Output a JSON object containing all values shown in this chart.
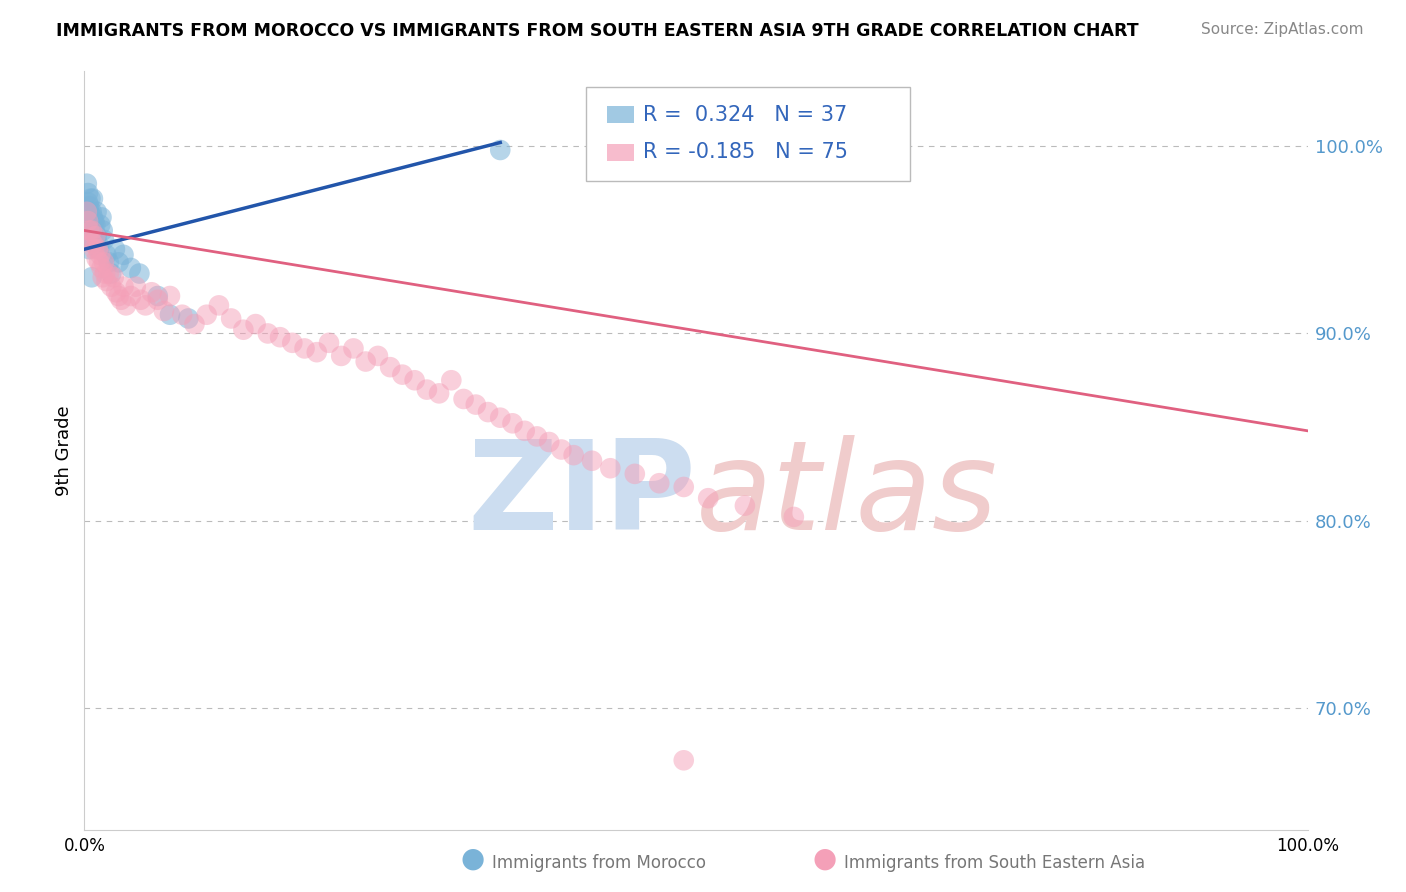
{
  "title": "IMMIGRANTS FROM MOROCCO VS IMMIGRANTS FROM SOUTH EASTERN ASIA 9TH GRADE CORRELATION CHART",
  "source": "Source: ZipAtlas.com",
  "ylabel": "9th Grade",
  "ytick_labels": [
    "100.0%",
    "90.0%",
    "80.0%",
    "70.0%"
  ],
  "ytick_values": [
    1.0,
    0.9,
    0.8,
    0.7
  ],
  "xlim": [
    0.0,
    1.0
  ],
  "ylim": [
    0.635,
    1.04
  ],
  "blue_color": "#7ab3d8",
  "pink_color": "#f4a0b8",
  "blue_line_color": "#2255aa",
  "pink_line_color": "#e06080",
  "background_color": "#ffffff",
  "grid_color": "#bbbbbb",
  "watermark_zip_color": "#ccddf0",
  "watermark_atlas_color": "#f0cccc",
  "blue_scatter_x": [
    0.002,
    0.003,
    0.003,
    0.004,
    0.004,
    0.005,
    0.005,
    0.006,
    0.006,
    0.007,
    0.007,
    0.008,
    0.008,
    0.009,
    0.01,
    0.01,
    0.011,
    0.012,
    0.013,
    0.014,
    0.015,
    0.016,
    0.018,
    0.02,
    0.022,
    0.025,
    0.028,
    0.032,
    0.038,
    0.045,
    0.06,
    0.07,
    0.085,
    0.34,
    0.003,
    0.004,
    0.006
  ],
  "blue_scatter_y": [
    0.98,
    0.975,
    0.97,
    0.968,
    0.965,
    0.972,
    0.96,
    0.965,
    0.958,
    0.972,
    0.962,
    0.96,
    0.955,
    0.958,
    0.965,
    0.952,
    0.948,
    0.945,
    0.958,
    0.962,
    0.955,
    0.95,
    0.942,
    0.938,
    0.932,
    0.945,
    0.938,
    0.942,
    0.935,
    0.932,
    0.92,
    0.91,
    0.908,
    0.998,
    0.95,
    0.945,
    0.93
  ],
  "pink_scatter_x": [
    0.002,
    0.003,
    0.004,
    0.005,
    0.006,
    0.007,
    0.008,
    0.009,
    0.01,
    0.011,
    0.012,
    0.013,
    0.014,
    0.015,
    0.016,
    0.017,
    0.018,
    0.02,
    0.022,
    0.024,
    0.026,
    0.028,
    0.03,
    0.032,
    0.034,
    0.038,
    0.042,
    0.046,
    0.05,
    0.055,
    0.06,
    0.065,
    0.07,
    0.08,
    0.09,
    0.1,
    0.11,
    0.12,
    0.13,
    0.14,
    0.15,
    0.16,
    0.17,
    0.18,
    0.19,
    0.2,
    0.21,
    0.22,
    0.23,
    0.24,
    0.25,
    0.26,
    0.27,
    0.28,
    0.29,
    0.3,
    0.31,
    0.32,
    0.33,
    0.34,
    0.35,
    0.36,
    0.37,
    0.38,
    0.39,
    0.4,
    0.415,
    0.43,
    0.45,
    0.47,
    0.49,
    0.51,
    0.54,
    0.58,
    0.49
  ],
  "pink_scatter_y": [
    0.965,
    0.96,
    0.955,
    0.95,
    0.955,
    0.948,
    0.945,
    0.952,
    0.94,
    0.945,
    0.938,
    0.942,
    0.935,
    0.93,
    0.938,
    0.932,
    0.928,
    0.932,
    0.925,
    0.93,
    0.922,
    0.92,
    0.918,
    0.925,
    0.915,
    0.92,
    0.925,
    0.918,
    0.915,
    0.922,
    0.918,
    0.912,
    0.92,
    0.91,
    0.905,
    0.91,
    0.915,
    0.908,
    0.902,
    0.905,
    0.9,
    0.898,
    0.895,
    0.892,
    0.89,
    0.895,
    0.888,
    0.892,
    0.885,
    0.888,
    0.882,
    0.878,
    0.875,
    0.87,
    0.868,
    0.875,
    0.865,
    0.862,
    0.858,
    0.855,
    0.852,
    0.848,
    0.845,
    0.842,
    0.838,
    0.835,
    0.832,
    0.828,
    0.825,
    0.82,
    0.818,
    0.812,
    0.808,
    0.802,
    0.672
  ],
  "blue_line_x": [
    0.0,
    0.34
  ],
  "blue_line_y": [
    0.945,
    1.002
  ],
  "pink_line_x": [
    0.0,
    1.0
  ],
  "pink_line_y": [
    0.955,
    0.848
  ],
  "legend_blue_label_r": "R =  0.324",
  "legend_blue_label_n": "N = 37",
  "legend_pink_label_r": "R = -0.185",
  "legend_pink_label_n": "N = 75",
  "bottom_label_blue": "Immigrants from Morocco",
  "bottom_label_pink": "Immigrants from South Eastern Asia"
}
